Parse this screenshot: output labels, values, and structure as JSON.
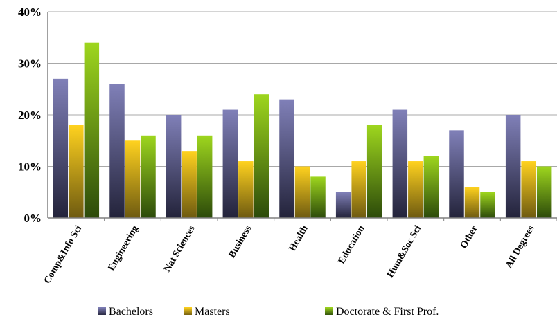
{
  "chart_data": {
    "type": "bar",
    "categories": [
      "Comp&Info Sci",
      "Engineering",
      "Nat Sciences",
      "Business",
      "Health",
      "Education",
      "Hum&Soc Sci",
      "Other",
      "All Degrees"
    ],
    "series": [
      {
        "name": "Bachelors",
        "values": [
          27,
          26,
          20,
          21,
          23,
          5,
          21,
          17,
          20
        ]
      },
      {
        "name": "Masters",
        "values": [
          18,
          15,
          13,
          11,
          10,
          11,
          11,
          6,
          11
        ]
      },
      {
        "name": "Doctorate & First Prof.",
        "values": [
          34,
          16,
          16,
          24,
          8,
          18,
          12,
          5,
          10
        ]
      }
    ],
    "y_ticks": [
      "0%",
      "10%",
      "20%",
      "30%",
      "40%"
    ],
    "ylim": [
      0,
      40
    ],
    "y_unit": "%",
    "grid": true,
    "legend_position": "bottom",
    "colors": {
      "Bachelors": {
        "top": "#8080b8",
        "bottom": "#23233a"
      },
      "Masters": {
        "top": "#ffd21f",
        "bottom": "#6e5a10"
      },
      "Doctorate & First Prof.": {
        "top": "#9ed61e",
        "bottom": "#2c4a0a"
      }
    }
  }
}
